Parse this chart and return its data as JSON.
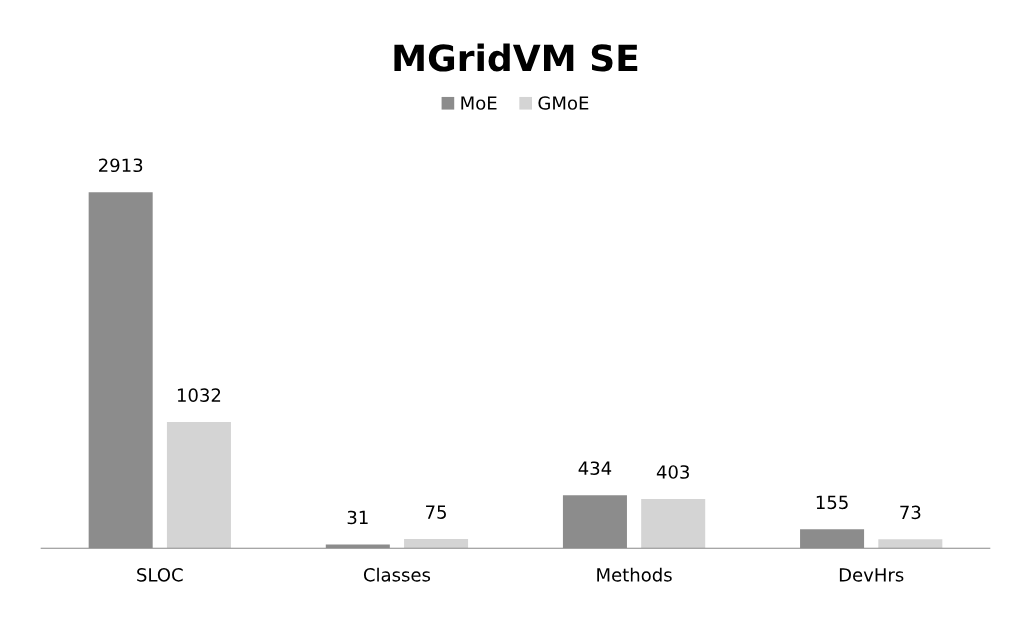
{
  "chart_data": {
    "type": "bar",
    "title": "MGridVM SE",
    "categories": [
      "SLOC",
      "Classes",
      "Methods",
      "DevHrs"
    ],
    "series": [
      {
        "name": "MoE",
        "color": "#8c8c8c",
        "values": [
          2913,
          31,
          434,
          155
        ]
      },
      {
        "name": "GMoE",
        "color": "#d4d4d4",
        "values": [
          1032,
          75,
          403,
          73
        ]
      }
    ],
    "data_labels": true,
    "legend": "top",
    "grid": false,
    "tick_labels": "x"
  }
}
